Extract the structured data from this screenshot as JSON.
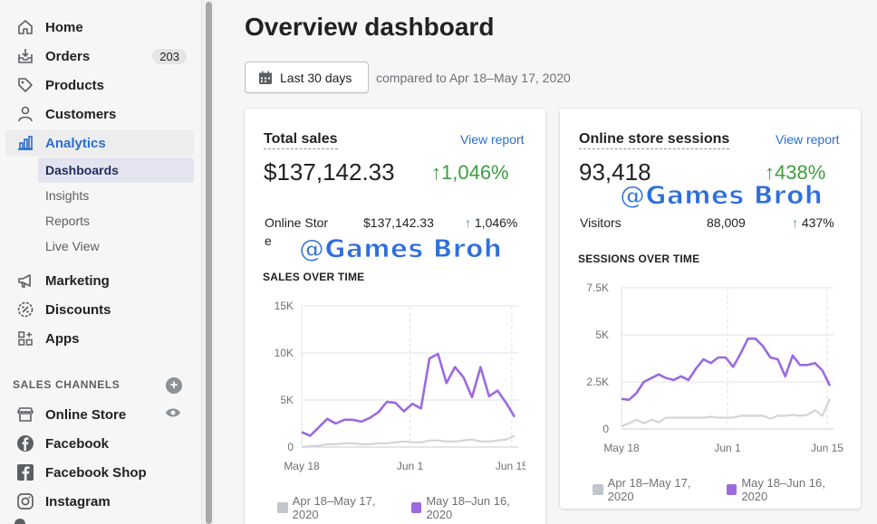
{
  "sidebar": {
    "items": [
      {
        "label": "Home",
        "icon": "home-icon"
      },
      {
        "label": "Orders",
        "icon": "orders-icon",
        "badge": "203"
      },
      {
        "label": "Products",
        "icon": "tag-icon"
      },
      {
        "label": "Customers",
        "icon": "person-icon"
      },
      {
        "label": "Analytics",
        "icon": "bar-chart-icon"
      }
    ],
    "analytics_sub": [
      "Dashboards",
      "Insights",
      "Reports",
      "Live View"
    ],
    "items2": [
      {
        "label": "Marketing",
        "icon": "megaphone-icon"
      },
      {
        "label": "Discounts",
        "icon": "discount-icon"
      },
      {
        "label": "Apps",
        "icon": "apps-icon"
      }
    ],
    "sales_channels_label": "SALES CHANNELS",
    "channels": [
      {
        "label": "Online Store",
        "icon": "store-icon"
      },
      {
        "label": "Facebook",
        "icon": "facebook-icon"
      },
      {
        "label": "Facebook Shop",
        "icon": "facebook-shop-icon"
      },
      {
        "label": "Instagram",
        "icon": "instagram-icon"
      }
    ]
  },
  "header": {
    "title": "Overview dashboard",
    "date_range": "Last 30 days",
    "comparison": "compared to Apr 18–May 17, 2020"
  },
  "colors": {
    "accent": "#2c6ecb",
    "positive": "#3c9f40",
    "current_series": "#9c6ade",
    "previous_series": "#d2d5d8"
  },
  "total_sales": {
    "title": "Total sales",
    "view_report": "View report",
    "value": "$137,142.33",
    "change": "1,046%",
    "row_label_1": "Online Stor",
    "row_label_2": "e",
    "row_value": "$137,142.33",
    "row_change": "1,046%",
    "chart_title": "SALES OVER TIME"
  },
  "sessions": {
    "title": "Online store sessions",
    "view_report": "View report",
    "value": "93,418",
    "change": "438%",
    "row_label": "Visitors",
    "row_value": "88,009",
    "row_change": "437%",
    "chart_title": "SESSIONS OVER TIME"
  },
  "watermark": "@Games Broh",
  "chart_data": [
    {
      "type": "line",
      "title": "SALES OVER TIME",
      "x_ticks": [
        "May 18",
        "Jun 1",
        "Jun 15"
      ],
      "y_ticks": [
        "0",
        "5K",
        "10K",
        "15K"
      ],
      "ylim": [
        0,
        15000
      ],
      "series": [
        {
          "name": "May 18–Jun 16, 2020",
          "values": [
            1600,
            1200,
            2100,
            3000,
            2500,
            2900,
            2900,
            2700,
            3100,
            3700,
            4800,
            4700,
            3800,
            4600,
            4100,
            9400,
            9900,
            6800,
            8500,
            7400,
            5300,
            8500,
            5400,
            6000,
            4700,
            3200
          ]
        },
        {
          "name": "Apr 18–May 17, 2020",
          "values": [
            0,
            100,
            150,
            300,
            300,
            400,
            400,
            300,
            300,
            400,
            400,
            500,
            600,
            500,
            500,
            700,
            700,
            600,
            600,
            700,
            800,
            600,
            600,
            700,
            800,
            1200
          ]
        }
      ],
      "legend": [
        "Apr 18–May 17, 2020",
        "May 18–Jun 16, 2020"
      ]
    },
    {
      "type": "line",
      "title": "SESSIONS OVER TIME",
      "x_ticks": [
        "May 18",
        "Jun 1",
        "Jun 15"
      ],
      "y_ticks": [
        "0",
        "2.5K",
        "5K",
        "7.5K"
      ],
      "ylim": [
        0,
        7500
      ],
      "series": [
        {
          "name": "May 18–Jun 16, 2020",
          "values": [
            1600,
            1550,
            1900,
            2500,
            2700,
            2900,
            2700,
            2600,
            2800,
            2600,
            3200,
            3700,
            3500,
            3800,
            3800,
            3300,
            4000,
            4800,
            4800,
            4400,
            3800,
            3700,
            2800,
            3900,
            3400,
            3400,
            3500,
            3100,
            2300
          ]
        },
        {
          "name": "Apr 18–May 17, 2020",
          "values": [
            150,
            300,
            500,
            300,
            500,
            350,
            600,
            600,
            600,
            600,
            600,
            600,
            650,
            600,
            600,
            600,
            700,
            700,
            700,
            700,
            550,
            700,
            700,
            750,
            700,
            750,
            1000,
            700,
            1600
          ]
        }
      ],
      "legend": [
        "Apr 18–May 17, 2020",
        "May 18–Jun 16, 2020"
      ]
    }
  ]
}
